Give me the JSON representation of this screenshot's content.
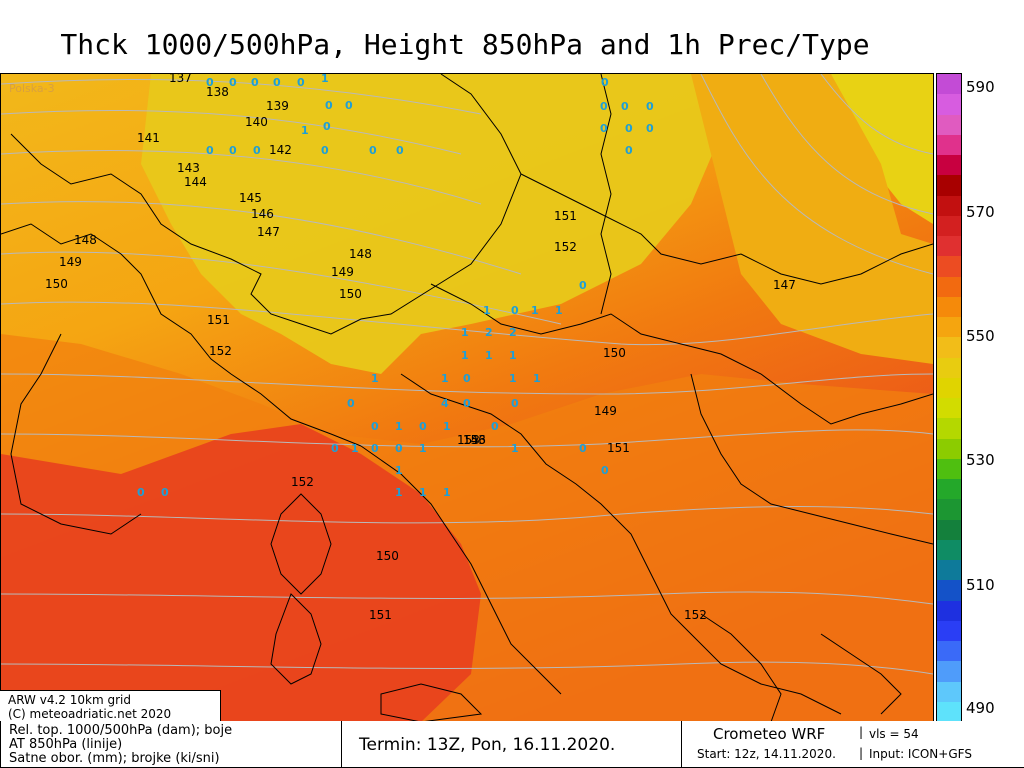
{
  "title": "Thck 1000/500hPa, Height 850hPa and 1h Prec/Type",
  "map": {
    "corner_text": "Polska-3",
    "contour_labels": [
      {
        "text": "137"
      },
      {
        "text": "138"
      },
      {
        "text": "139"
      },
      {
        "text": "140"
      },
      {
        "text": "141"
      },
      {
        "text": "142"
      },
      {
        "text": "143"
      },
      {
        "text": "144"
      },
      {
        "text": "145"
      },
      {
        "text": "146"
      },
      {
        "text": "147"
      },
      {
        "text": "148"
      },
      {
        "text": "149"
      },
      {
        "text": "150"
      },
      {
        "text": "151"
      },
      {
        "text": "152"
      },
      {
        "text": "148"
      },
      {
        "text": "149"
      },
      {
        "text": "150"
      },
      {
        "text": "151"
      },
      {
        "text": "152"
      },
      {
        "text": "146"
      },
      {
        "text": "147"
      },
      {
        "text": "150"
      },
      {
        "text": "149"
      },
      {
        "text": "151"
      },
      {
        "text": "152"
      },
      {
        "text": "150"
      },
      {
        "text": "151"
      },
      {
        "text": "152"
      },
      {
        "text": "153"
      },
      {
        "text": "153"
      }
    ],
    "precip_values": [
      "0",
      "0",
      "0",
      "0",
      "0",
      "1",
      "0",
      "0",
      "0",
      "1",
      "0",
      "0",
      "0",
      "0",
      "0",
      "0",
      "0",
      "0",
      "0",
      "0",
      "0",
      "0",
      "0",
      "0",
      "1",
      "0",
      "1",
      "1",
      "0",
      "1",
      "2",
      "2",
      "1",
      "1",
      "1",
      "1",
      "1",
      "0",
      "1",
      "1",
      "0",
      "4",
      "0",
      "0",
      "0",
      "1",
      "0",
      "1",
      "0",
      "0",
      "1",
      "0",
      "0",
      "1",
      "1",
      "0",
      "0",
      "1",
      "1",
      "1",
      "1",
      "0",
      "0"
    ]
  },
  "scale": {
    "labels": [
      "590",
      "570",
      "550",
      "530",
      "510",
      "490"
    ],
    "colors": [
      "#c34bd6",
      "#d75ce0",
      "#e05bc0",
      "#e0318c",
      "#c80040",
      "#a80000",
      "#c21010",
      "#d32020",
      "#e03030",
      "#ec4c22",
      "#f26a10",
      "#f58a0a",
      "#f5a50f",
      "#f2bd18",
      "#e8cc10",
      "#e0d400",
      "#d2dc00",
      "#b4d800",
      "#8ccc00",
      "#4fbf10",
      "#24a82a",
      "#1c9632",
      "#14803c",
      "#0f8c64",
      "#0e7a9a",
      "#1452c8",
      "#1e30e0",
      "#2a3ef5",
      "#3a6af8",
      "#4f9cfa",
      "#5ec8fb",
      "#5ee2fb"
    ]
  },
  "credits": {
    "line1": "ARW v4.2 10km grid",
    "line2": "(C) meteoadriatic.net 2020"
  },
  "footer": {
    "legend_line1": "Rel. top. 1000/500hPa (dam); boje",
    "legend_line2": "AT 850hPa (linije)",
    "legend_line3": "Satne obor. (mm); brojke (ki/sni)",
    "termin": "Termin: 13Z, Pon, 16.11.2020.",
    "model": "Crometeo WRF",
    "vls": "vls = 54",
    "start": "Start: 12z, 14.11.2020.",
    "input": "Input: ICON+GFS"
  }
}
